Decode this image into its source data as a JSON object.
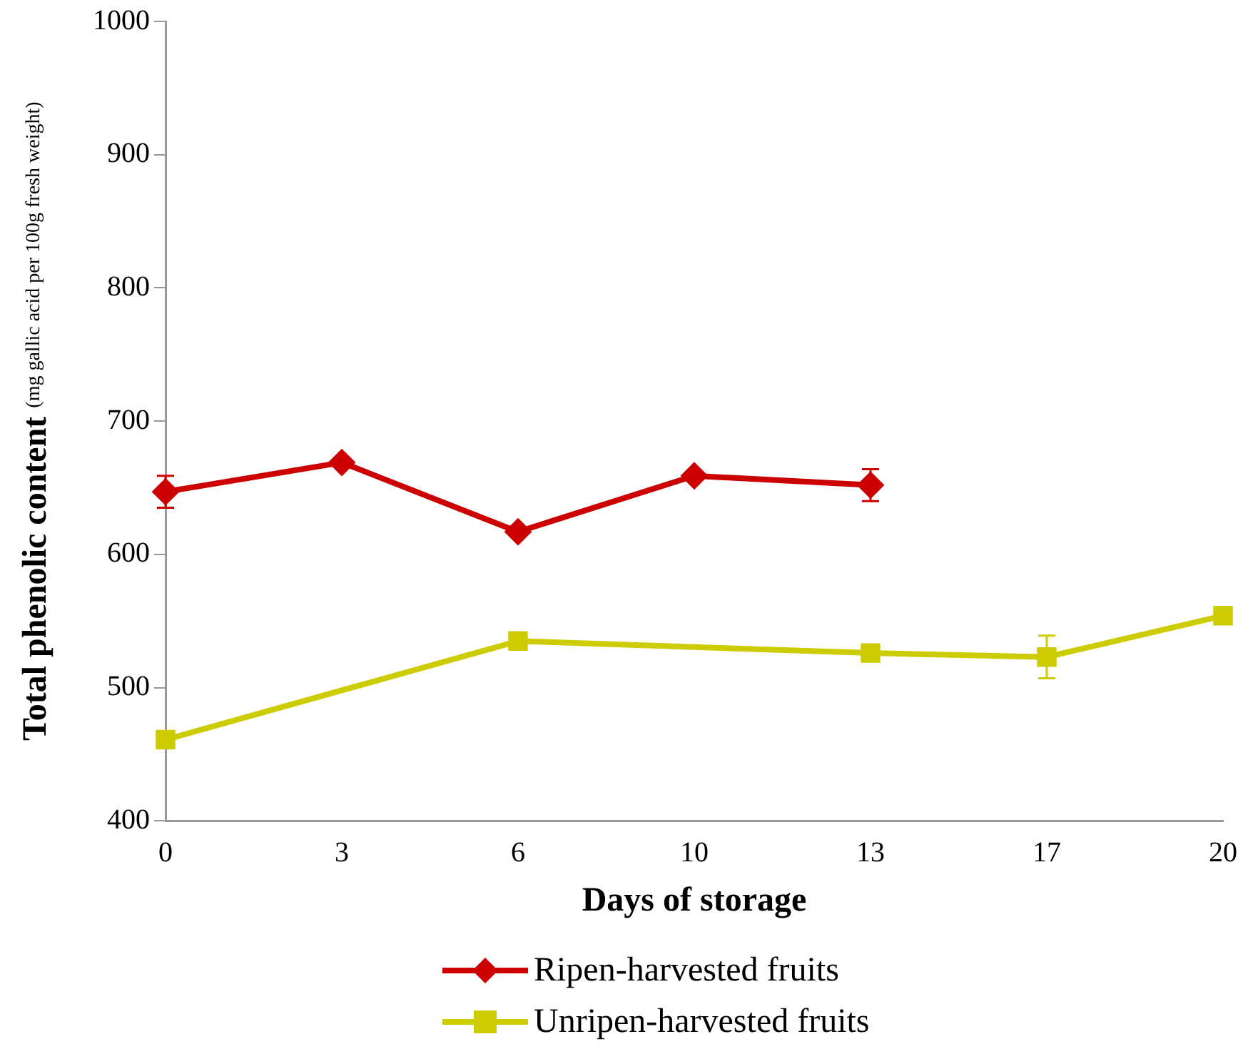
{
  "chart_data": {
    "type": "line",
    "xlabel": "Days of storage",
    "ylabel": "Total phenolic content (mg gallic acid per 100g fresh weight)",
    "categories": [
      "0",
      "3",
      "6",
      "10",
      "13",
      "17",
      "20"
    ],
    "ylim": [
      400,
      1000
    ],
    "yticks": [
      400,
      500,
      600,
      700,
      800,
      900,
      1000
    ],
    "grid": false,
    "legend": "bottom",
    "series": [
      {
        "name": "Ripen-harvested fruits",
        "color": "#cc0000",
        "marker": "diamond",
        "values": [
          647,
          669,
          617,
          659,
          652,
          null,
          null
        ],
        "errors": [
          12,
          null,
          null,
          null,
          12,
          null,
          null
        ]
      },
      {
        "name": "Unripen-harvested fruits",
        "color": "#cccc00",
        "marker": "square",
        "values": [
          461,
          null,
          535,
          null,
          526,
          523,
          554
        ],
        "errors": [
          null,
          null,
          null,
          null,
          null,
          16,
          null
        ]
      }
    ]
  }
}
